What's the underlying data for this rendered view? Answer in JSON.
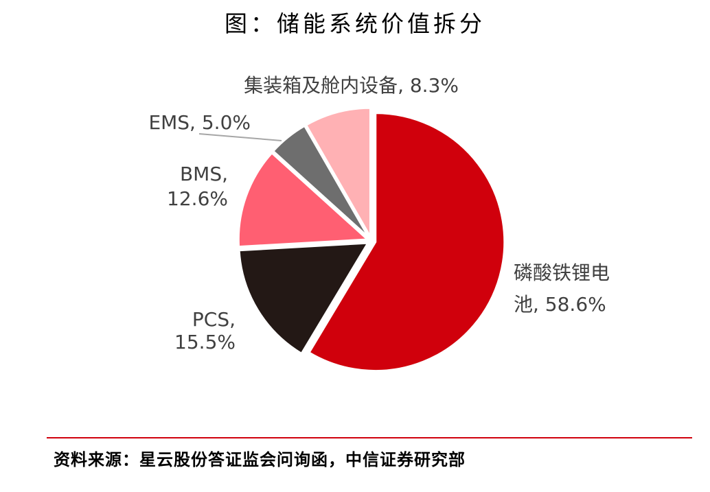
{
  "title": "图：储能系统价值拆分",
  "source": "资料来源：星云股份答证监会问询函，中信证券研究部",
  "colors": {
    "divider": "#d0000c"
  },
  "chart_data": {
    "type": "pie",
    "title": "图：储能系统价值拆分",
    "start_angle_deg": 0,
    "direction": "clockwise",
    "slices": [
      {
        "label": "磷酸铁锂电池",
        "display_label": [
          "磷酸铁锂电",
          "池, 58.6%"
        ],
        "value": 58.6,
        "color": "#d0000c"
      },
      {
        "label": "PCS",
        "display_label": [
          "PCS,",
          "15.5%"
        ],
        "value": 15.5,
        "color": "#231815"
      },
      {
        "label": "BMS",
        "display_label": [
          "BMS,",
          "12.6%"
        ],
        "value": 12.6,
        "color": "#ff5f72"
      },
      {
        "label": "EMS",
        "display_label": [
          "EMS, 5.0%"
        ],
        "value": 5.0,
        "color": "#6e6e6e"
      },
      {
        "label": "集装箱及舱内设备",
        "display_label": [
          "集装箱及舱内设备, 8.3%"
        ],
        "value": 8.3,
        "color": "#ffb1b4"
      }
    ],
    "legend": "none"
  }
}
